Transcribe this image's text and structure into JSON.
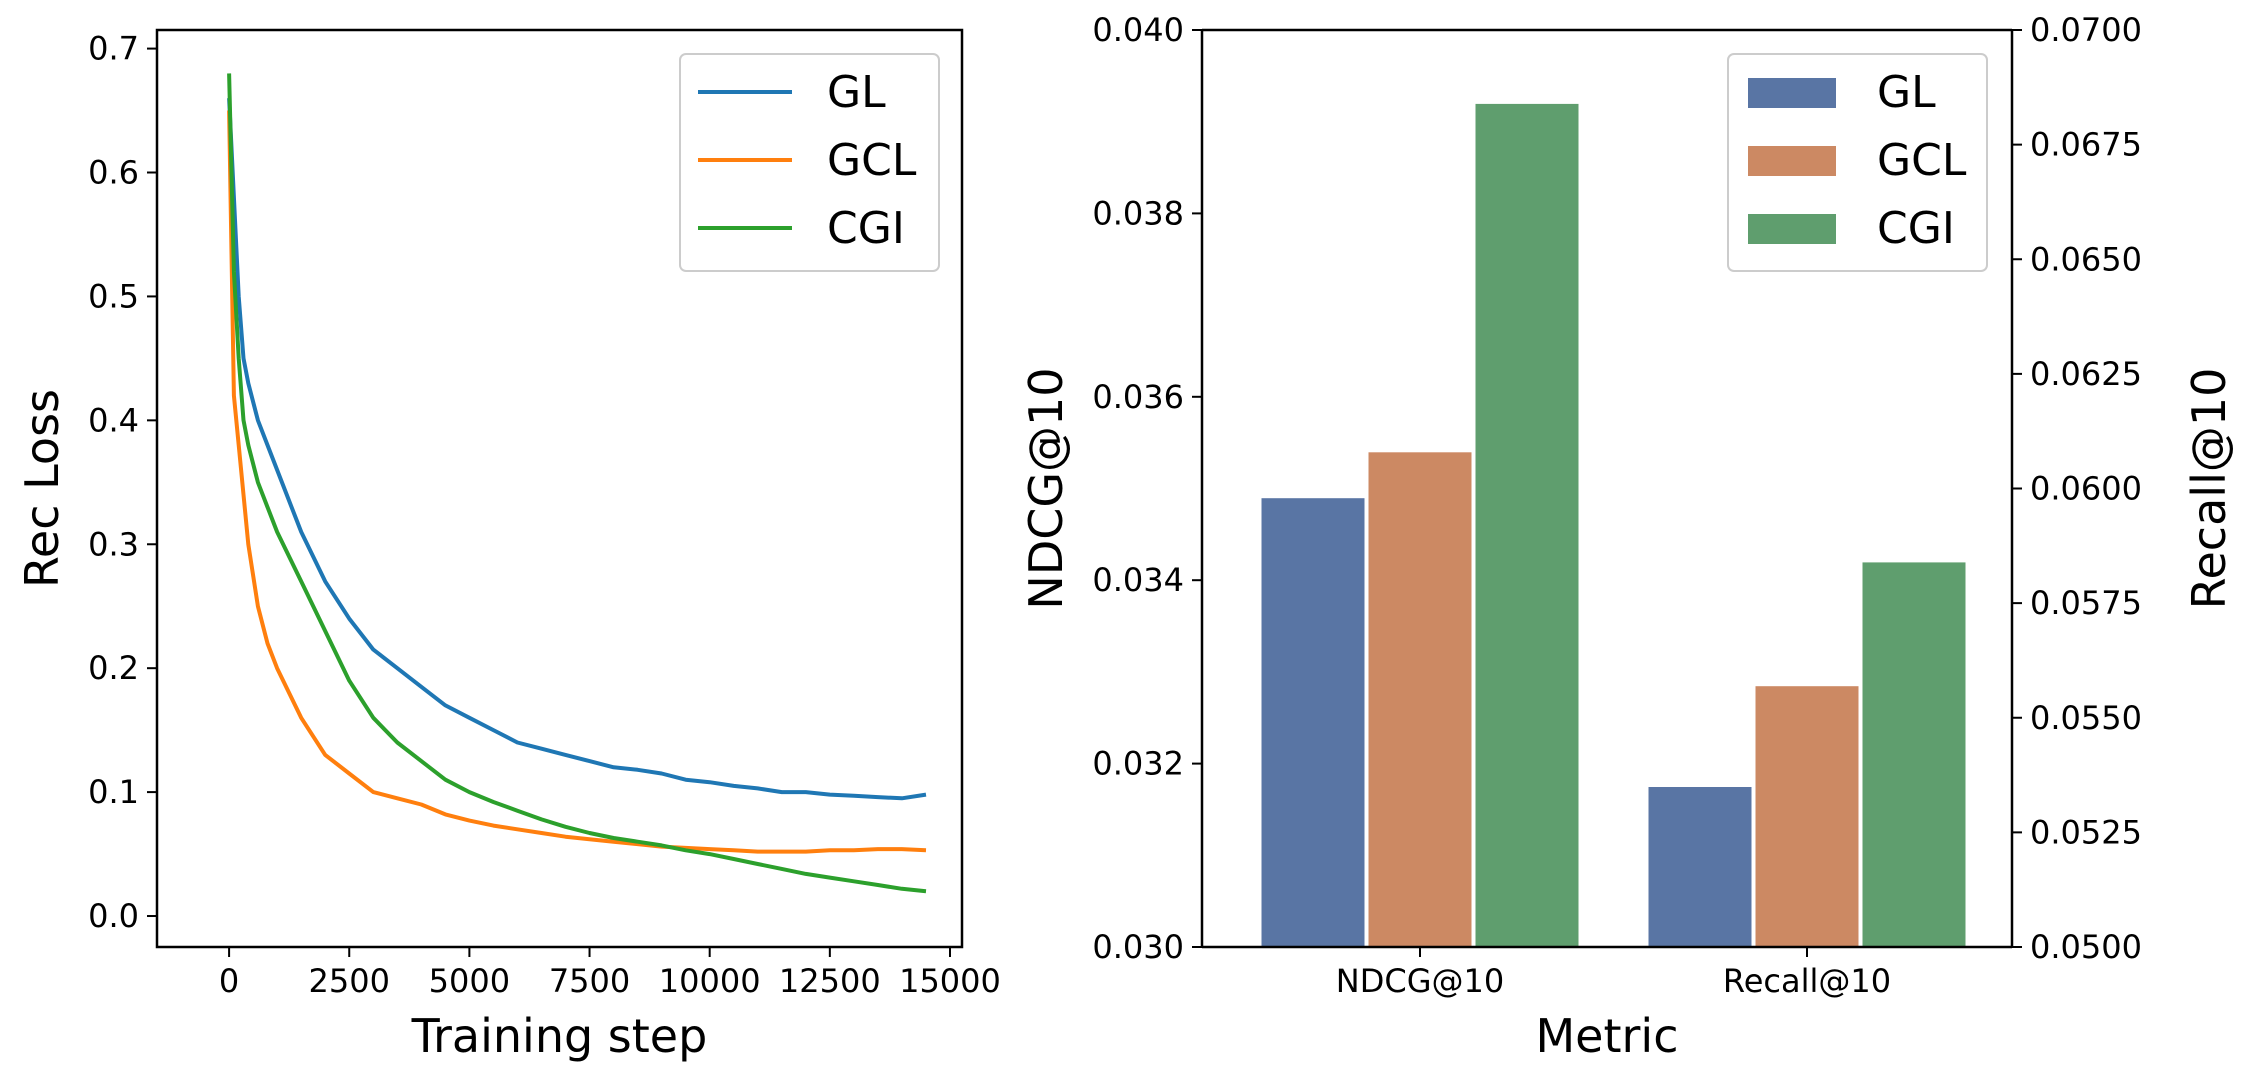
{
  "chart_data": [
    {
      "type": "line",
      "title": "",
      "xlabel": "Training step",
      "ylabel": "Rec Loss",
      "xlim": [
        -1500,
        15250
      ],
      "ylim": [
        -0.025,
        0.715
      ],
      "xticks": [
        0,
        2500,
        5000,
        7500,
        10000,
        12500,
        15000
      ],
      "xtick_labels": [
        "0",
        "2500",
        "5000",
        "7500",
        "10000",
        "12500",
        "15000"
      ],
      "yticks": [
        0.0,
        0.1,
        0.2,
        0.3,
        0.4,
        0.5,
        0.6,
        0.7
      ],
      "ytick_labels": [
        "0.0",
        "0.1",
        "0.2",
        "0.3",
        "0.4",
        "0.5",
        "0.6",
        "0.7"
      ],
      "grid": false,
      "legend_position": "top-right",
      "series": [
        {
          "name": "GL",
          "color": "#1f77b4",
          "x": [
            0,
            100,
            200,
            300,
            400,
            600,
            800,
            1000,
            1500,
            2000,
            2500,
            3000,
            3500,
            4000,
            4500,
            5000,
            5500,
            6000,
            6500,
            7000,
            7500,
            8000,
            8500,
            9000,
            9500,
            10000,
            10500,
            11000,
            11500,
            12000,
            12500,
            13000,
            13500,
            14000,
            14500
          ],
          "y": [
            0.66,
            0.58,
            0.5,
            0.45,
            0.43,
            0.4,
            0.38,
            0.36,
            0.31,
            0.27,
            0.24,
            0.215,
            0.2,
            0.185,
            0.17,
            0.16,
            0.15,
            0.14,
            0.135,
            0.13,
            0.125,
            0.12,
            0.118,
            0.115,
            0.11,
            0.108,
            0.105,
            0.103,
            0.1,
            0.1,
            0.098,
            0.097,
            0.096,
            0.095,
            0.098
          ]
        },
        {
          "name": "GCL",
          "color": "#ff7f0e",
          "x": [
            0,
            100,
            200,
            300,
            400,
            600,
            800,
            1000,
            1500,
            2000,
            2500,
            3000,
            3500,
            4000,
            4500,
            5000,
            5500,
            6000,
            6500,
            7000,
            7500,
            8000,
            8500,
            9000,
            9500,
            10000,
            10500,
            11000,
            11500,
            12000,
            12500,
            13000,
            13500,
            14000,
            14500
          ],
          "y": [
            0.65,
            0.42,
            0.38,
            0.34,
            0.3,
            0.25,
            0.22,
            0.2,
            0.16,
            0.13,
            0.115,
            0.1,
            0.095,
            0.09,
            0.082,
            0.077,
            0.073,
            0.07,
            0.067,
            0.064,
            0.062,
            0.06,
            0.058,
            0.056,
            0.055,
            0.054,
            0.053,
            0.052,
            0.052,
            0.052,
            0.053,
            0.053,
            0.054,
            0.054,
            0.053
          ]
        },
        {
          "name": "CGI",
          "color": "#2ca02c",
          "x": [
            0,
            100,
            200,
            300,
            400,
            600,
            800,
            1000,
            1500,
            2000,
            2500,
            3000,
            3500,
            4000,
            4500,
            5000,
            5500,
            6000,
            6500,
            7000,
            7500,
            8000,
            8500,
            9000,
            9500,
            10000,
            10500,
            11000,
            11500,
            12000,
            12500,
            13000,
            13500,
            14000,
            14500
          ],
          "y": [
            0.68,
            0.52,
            0.45,
            0.4,
            0.38,
            0.35,
            0.33,
            0.31,
            0.27,
            0.23,
            0.19,
            0.16,
            0.14,
            0.125,
            0.11,
            0.1,
            0.092,
            0.085,
            0.078,
            0.072,
            0.067,
            0.063,
            0.06,
            0.057,
            0.053,
            0.05,
            0.046,
            0.042,
            0.038,
            0.034,
            0.031,
            0.028,
            0.025,
            0.022,
            0.02
          ]
        }
      ]
    },
    {
      "type": "bar",
      "title": "",
      "xlabel": "Metric",
      "ylabel": "NDCG@10",
      "ylabel_right": "Recall@10",
      "categories": [
        "NDCG@10",
        "Recall@10"
      ],
      "ylim": [
        0.03,
        0.04
      ],
      "ylim_right": [
        0.05,
        0.07
      ],
      "yticks": [
        0.03,
        0.032,
        0.034,
        0.036,
        0.038,
        0.04
      ],
      "ytick_labels": [
        "0.030",
        "0.032",
        "0.034",
        "0.036",
        "0.038",
        "0.040"
      ],
      "yticks_right": [
        0.05,
        0.0525,
        0.055,
        0.0575,
        0.06,
        0.0625,
        0.065,
        0.0675,
        0.07
      ],
      "ytick_labels_right": [
        "0.0500",
        "0.0525",
        "0.0550",
        "0.0575",
        "0.0600",
        "0.0625",
        "0.0650",
        "0.0675",
        "0.0700"
      ],
      "grid": false,
      "legend_position": "top-right",
      "series": [
        {
          "name": "GL",
          "color": "#5975a4",
          "values": [
            0.0349,
            0.0535
          ],
          "axes": [
            "left",
            "right"
          ]
        },
        {
          "name": "GCL",
          "color": "#cc8963",
          "values": [
            0.0354,
            0.0557
          ],
          "axes": [
            "left",
            "right"
          ]
        },
        {
          "name": "CGI",
          "color": "#5f9e6e",
          "values": [
            0.0392,
            0.0584
          ],
          "axes": [
            "left",
            "right"
          ]
        }
      ]
    }
  ]
}
